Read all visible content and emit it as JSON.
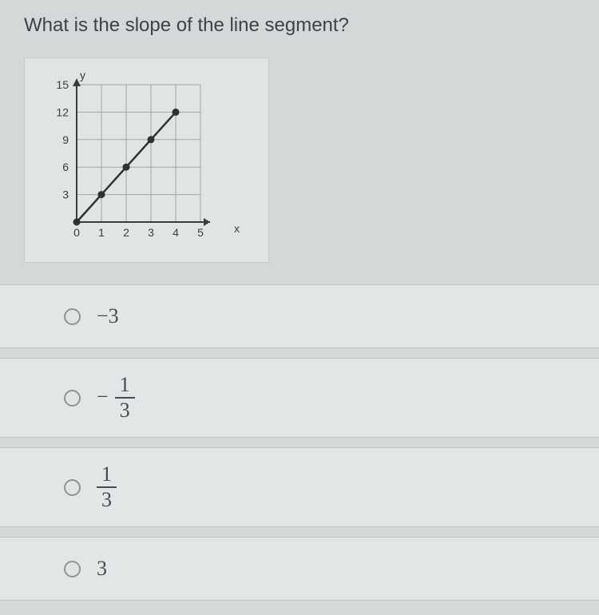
{
  "question": "What is the slope of the line segment?",
  "chart": {
    "type": "line",
    "x_label": "x",
    "y_label": "y",
    "xlim": [
      0,
      5
    ],
    "ylim": [
      0,
      15
    ],
    "x_ticks": [
      0,
      1,
      2,
      3,
      4,
      5
    ],
    "y_ticks": [
      3,
      6,
      9,
      12,
      15
    ],
    "x_tick_labels": [
      "0",
      "1",
      "2",
      "3",
      "4",
      "5"
    ],
    "y_tick_labels": [
      "3",
      "6",
      "9",
      "12",
      "15"
    ],
    "points": [
      {
        "x": 0,
        "y": 0
      },
      {
        "x": 1,
        "y": 3
      },
      {
        "x": 2,
        "y": 6
      },
      {
        "x": 3,
        "y": 9
      },
      {
        "x": 4,
        "y": 12
      }
    ],
    "line_color": "#2f3233",
    "point_color": "#2f3233",
    "axis_color": "#3a3d3e",
    "grid_color": "#9fa6a4",
    "background_color": "#e0e5e4",
    "tick_font_size": 14,
    "line_width": 2.5,
    "point_radius": 4.5
  },
  "answers": {
    "a": {
      "type": "plain",
      "text": "−3"
    },
    "b": {
      "type": "neg_fraction",
      "num": "1",
      "den": "3"
    },
    "c": {
      "type": "fraction",
      "num": "1",
      "den": "3"
    },
    "d": {
      "type": "plain",
      "text": "3"
    }
  },
  "colors": {
    "page_bg": "#d2d9d8",
    "panel_bg": "#e1e7e6",
    "text": "#474b4d"
  }
}
